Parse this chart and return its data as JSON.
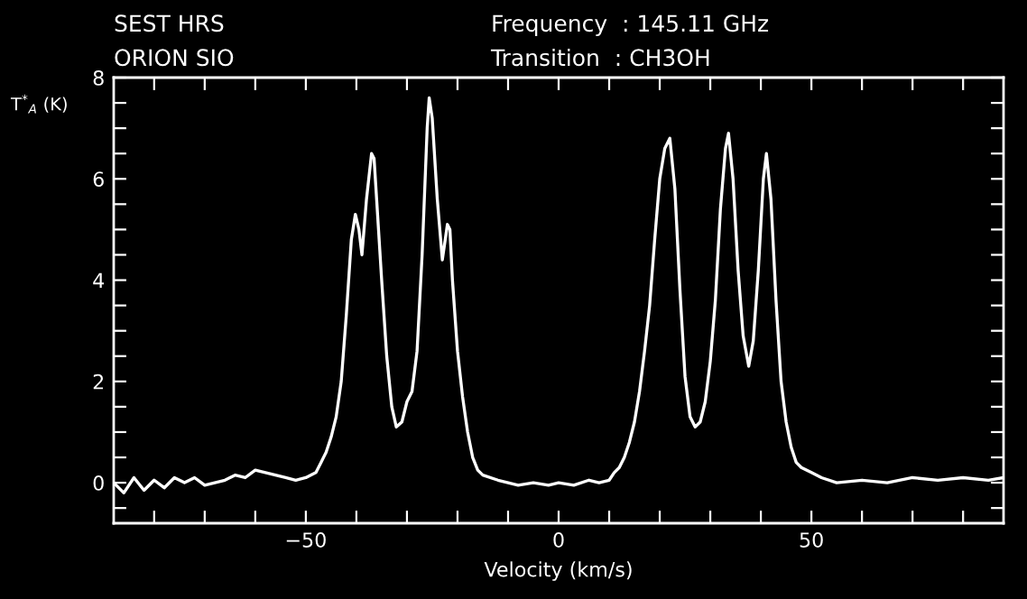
{
  "chart_data": {
    "type": "line",
    "annotations": [
      "SEST HRS",
      "ORION SIO",
      "Frequency  : 145.11 GHz",
      "Transition  : CH3OH"
    ],
    "xlabel": "Velocity (km/s)",
    "ylabel": "T$^{*}$$_{A}$ (K)",
    "xlim": [
      -88,
      88
    ],
    "ylim": [
      -0.8,
      8
    ],
    "xticks": [
      {
        "value": -80,
        "label": null
      },
      {
        "value": -70,
        "label": null
      },
      {
        "value": -60,
        "label": null
      },
      {
        "value": -50,
        "label": "−50"
      },
      {
        "value": -40,
        "label": null
      },
      {
        "value": -30,
        "label": null
      },
      {
        "value": -20,
        "label": null
      },
      {
        "value": -10,
        "label": null
      },
      0,
      {
        "value": 10,
        "label": null
      },
      {
        "value": 20,
        "label": null
      },
      {
        "value": 30,
        "label": null
      },
      {
        "value": 40,
        "label": null
      },
      50,
      {
        "value": 60,
        "label": null
      },
      {
        "value": 70,
        "label": null
      },
      {
        "value": 80,
        "label": null
      }
    ],
    "yticks": [
      {
        "value": -0.5,
        "label": null
      },
      0,
      {
        "value": 0.5,
        "label": null
      },
      {
        "value": 1,
        "label": null
      },
      {
        "value": 1.5,
        "label": null
      },
      2,
      {
        "value": 2.5,
        "label": null
      },
      {
        "value": 3,
        "label": null
      },
      {
        "value": 3.5,
        "label": null
      },
      4,
      {
        "value": 4.5,
        "label": null
      },
      {
        "value": 5,
        "label": null
      },
      {
        "value": 5.5,
        "label": null
      },
      6,
      {
        "value": 6.5,
        "label": null
      },
      {
        "value": 7,
        "label": null
      },
      {
        "value": 7.5,
        "label": null
      },
      8
    ],
    "grid": false,
    "marker": "none",
    "line_style": "solid",
    "series": [
      {
        "color": "#ffffff",
        "x": [
          -88,
          -86,
          -84,
          -82,
          -80,
          -78,
          -76,
          -74,
          -72,
          -70,
          -68,
          -66,
          -64,
          -62,
          -60,
          -58,
          -56,
          -54,
          -52,
          -50,
          -48,
          -47,
          -46,
          -45,
          -44,
          -43,
          -42,
          -41,
          -40.2,
          -39.5,
          -38.9,
          -38,
          -37,
          -36.5,
          -36,
          -35,
          -34,
          -33,
          -32.1,
          -31,
          -30,
          -29,
          -28,
          -27,
          -26,
          -25.6,
          -25,
          -24,
          -23,
          -22,
          -21.5,
          -21,
          -20,
          -19,
          -18,
          -17,
          -16,
          -15,
          -12,
          -10,
          -8,
          -5,
          -2,
          0,
          3,
          6,
          8,
          10,
          11,
          12,
          13,
          14,
          15,
          16,
          17,
          18,
          19,
          20,
          21,
          22,
          23,
          24,
          25,
          26,
          27,
          28,
          29,
          30,
          31,
          32,
          33,
          33.6,
          34.5,
          35.5,
          36.5,
          37.6,
          38.5,
          39.5,
          40.5,
          41.1,
          42,
          43,
          44,
          45,
          46,
          47,
          48,
          50,
          52,
          55,
          60,
          65,
          70,
          75,
          80,
          85,
          88
        ],
        "values": [
          0.0,
          -0.2,
          0.1,
          -0.15,
          0.05,
          -0.1,
          0.1,
          0.0,
          0.1,
          -0.05,
          0.0,
          0.05,
          0.15,
          0.1,
          0.25,
          0.2,
          0.15,
          0.1,
          0.05,
          0.1,
          0.2,
          0.4,
          0.6,
          0.9,
          1.3,
          2.0,
          3.3,
          4.8,
          5.3,
          5.0,
          4.5,
          5.6,
          6.5,
          6.4,
          5.6,
          4.0,
          2.5,
          1.5,
          1.1,
          1.2,
          1.6,
          1.8,
          2.6,
          4.5,
          7.0,
          7.6,
          7.2,
          5.6,
          4.4,
          5.1,
          5.0,
          4.0,
          2.6,
          1.7,
          1.0,
          0.5,
          0.25,
          0.15,
          0.05,
          0.0,
          -0.05,
          0.0,
          -0.05,
          0.0,
          -0.05,
          0.05,
          0.0,
          0.05,
          0.2,
          0.3,
          0.5,
          0.8,
          1.2,
          1.8,
          2.6,
          3.5,
          4.8,
          6.0,
          6.6,
          6.8,
          5.8,
          3.8,
          2.1,
          1.3,
          1.1,
          1.2,
          1.6,
          2.4,
          3.6,
          5.4,
          6.6,
          6.9,
          6.0,
          4.2,
          2.9,
          2.3,
          2.8,
          4.2,
          6.0,
          6.5,
          5.6,
          3.6,
          2.0,
          1.2,
          0.7,
          0.4,
          0.3,
          0.2,
          0.1,
          0.0,
          0.05,
          0.0,
          0.1,
          0.05,
          0.1,
          0.05,
          0.1
        ]
      }
    ]
  }
}
